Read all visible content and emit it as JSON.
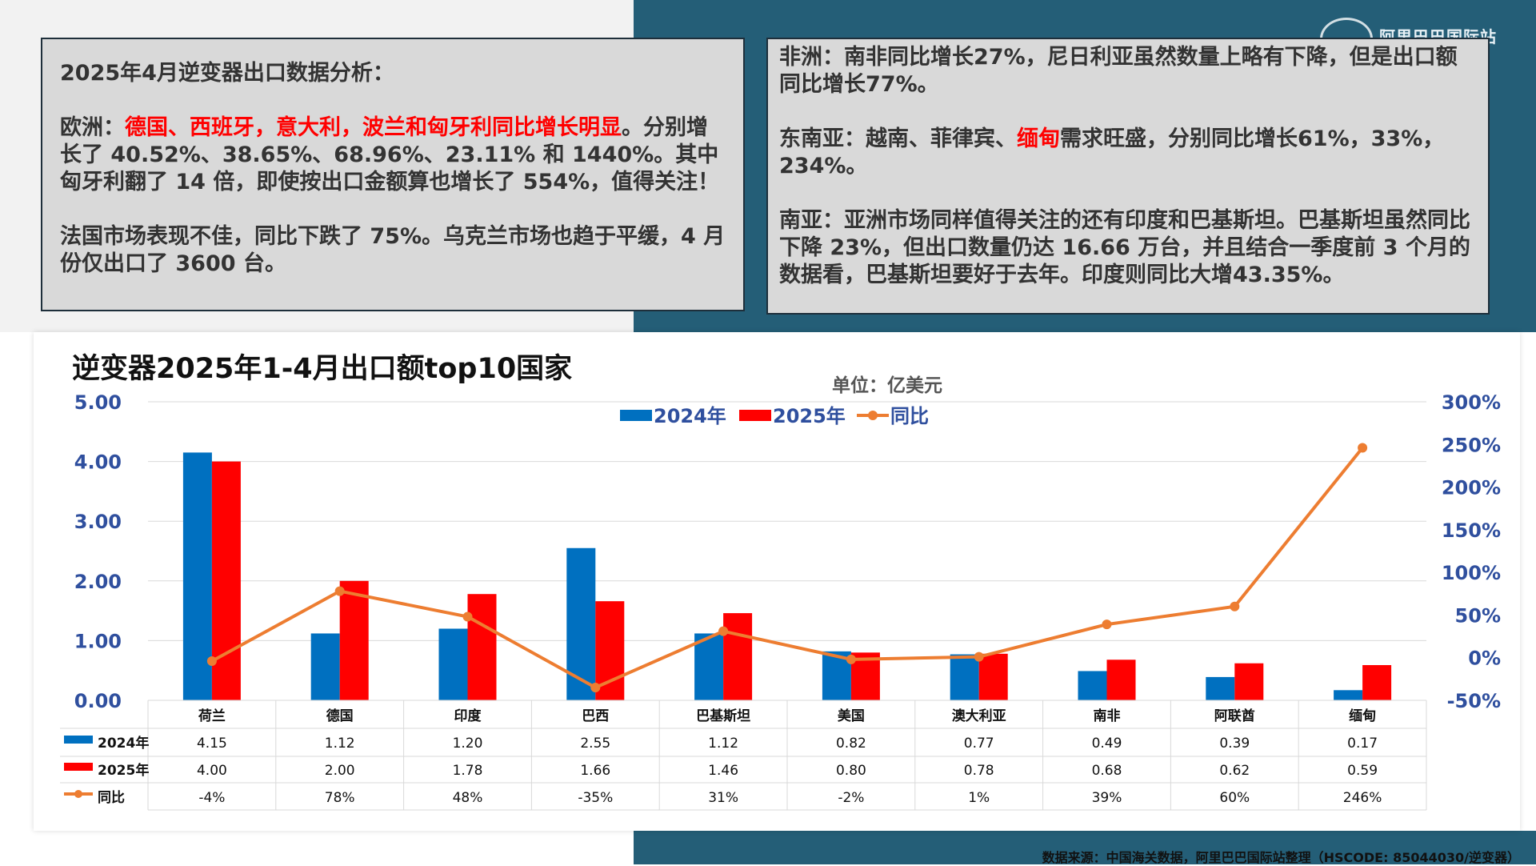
{
  "logo": {
    "text": "阿里巴巴国际站"
  },
  "panel_left": {
    "heading": "2025年4月逆变器出口数据分析：",
    "europe_prefix": "欧洲：",
    "europe_highlight": "德国、西班牙，意大利，波兰和匈牙利同比增长明显",
    "europe_rest": "。分别增长了 40.52%、38.65%、68.96%、23.11% 和 1440%。其中匈牙利翻了 14 倍，即使按出口金额算也增长了 554%，值得关注！",
    "france": "法国市场表现不佳，同比下跌了  75%。乌克兰市场也趋于平缓，4 月份仅出口了 3600 台。"
  },
  "panel_right": {
    "africa": "非洲：南非同比增长27%，尼日利亚虽然数量上略有下降，但是出口额同比增长77%。",
    "sea_prefix": "东南亚：越南、菲律宾、",
    "sea_highlight": "缅甸",
    "sea_rest": "需求旺盛，分别同比增长61%，33%，234%。",
    "south_asia": "南亚：亚洲市场同样值得关注的还有印度和巴基斯坦。巴基斯坦虽然同比下降 23%，但出口数量仍达 16.66 万台，并且结合一季度前 3 个月的数据看，巴基斯坦要好于去年。印度则同比大增43.35%。"
  },
  "source": "数据来源：中国海关数据，阿里巴巴国际站整理（HSCODE:  85044030/逆变器）",
  "chart_data": {
    "type": "bar",
    "title": "逆变器2025年1-4月出口额top10国家",
    "unit": "单位：亿美元",
    "categories": [
      "荷兰",
      "德国",
      "印度",
      "巴西",
      "巴基斯坦",
      "美国",
      "澳大利亚",
      "南非",
      "阿联酋",
      "缅甸"
    ],
    "series": [
      {
        "name": "2024年",
        "type": "bar",
        "color": "#0070c0",
        "values": [
          4.15,
          1.12,
          1.2,
          2.55,
          1.12,
          0.82,
          0.77,
          0.49,
          0.39,
          0.17
        ],
        "labels": [
          "4.15",
          "1.12",
          "1.20",
          "2.55",
          "1.12",
          "0.82",
          "0.77",
          "0.49",
          "0.39",
          "0.17"
        ]
      },
      {
        "name": "2025年",
        "type": "bar",
        "color": "#ff0000",
        "values": [
          4.0,
          2.0,
          1.78,
          1.66,
          1.46,
          0.8,
          0.78,
          0.68,
          0.62,
          0.59
        ],
        "labels": [
          "4.00",
          "2.00",
          "1.78",
          "1.66",
          "1.46",
          "0.80",
          "0.78",
          "0.68",
          "0.62",
          "0.59"
        ]
      },
      {
        "name": "同比",
        "type": "line",
        "axis": "right",
        "color": "#ed7d31",
        "values": [
          -4,
          78,
          48,
          -35,
          31,
          -2,
          1,
          39,
          60,
          246
        ],
        "labels": [
          "-4%",
          "78%",
          "48%",
          "-35%",
          "31%",
          "-2%",
          "1%",
          "39%",
          "60%",
          "246%"
        ]
      }
    ],
    "ylim": [
      0,
      5
    ],
    "yticks": [
      "0.00",
      "1.00",
      "2.00",
      "3.00",
      "4.00",
      "5.00"
    ],
    "y2lim": [
      -50,
      300
    ],
    "y2ticks": [
      "-50%",
      "0%",
      "50%",
      "100%",
      "150%",
      "200%",
      "250%",
      "300%"
    ],
    "grid": true,
    "legend": "top-center",
    "data_table": true
  }
}
